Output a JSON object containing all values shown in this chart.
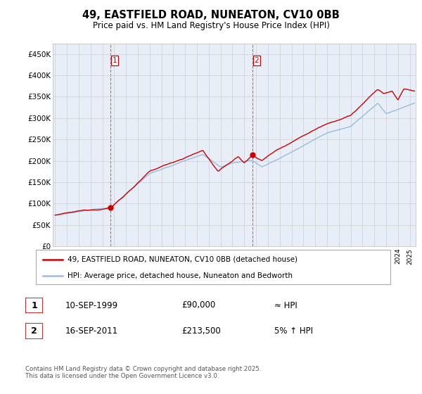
{
  "title": "49, EASTFIELD ROAD, NUNEATON, CV10 0BB",
  "subtitle": "Price paid vs. HM Land Registry's House Price Index (HPI)",
  "ylabel_ticks": [
    "£0",
    "£50K",
    "£100K",
    "£150K",
    "£200K",
    "£250K",
    "£300K",
    "£350K",
    "£400K",
    "£450K"
  ],
  "ytick_values": [
    0,
    50000,
    100000,
    150000,
    200000,
    250000,
    300000,
    350000,
    400000,
    450000
  ],
  "ylim": [
    0,
    475000
  ],
  "xlim_start": 1994.8,
  "xlim_end": 2025.5,
  "purchase1": {
    "date": "10-SEP-1999",
    "price": 90000,
    "label": "1",
    "year": 1999.7
  },
  "purchase2": {
    "date": "16-SEP-2011",
    "price": 213500,
    "label": "2",
    "year": 2011.7
  },
  "legend_line1": "49, EASTFIELD ROAD, NUNEATON, CV10 0BB (detached house)",
  "legend_line2": "HPI: Average price, detached house, Nuneaton and Bedworth",
  "table_row1": [
    "1",
    "10-SEP-1999",
    "£90,000",
    "≈ HPI"
  ],
  "table_row2": [
    "2",
    "16-SEP-2011",
    "£213,500",
    "5% ↑ HPI"
  ],
  "footer": "Contains HM Land Registry data © Crown copyright and database right 2025.\nThis data is licensed under the Open Government Licence v3.0.",
  "line_color_red": "#cc0000",
  "line_color_blue": "#99bbdd",
  "grid_color": "#cccccc",
  "bg_color": "#ffffff",
  "plot_bg_color": "#e8eef8",
  "dashed_line_color": "#cc0000"
}
